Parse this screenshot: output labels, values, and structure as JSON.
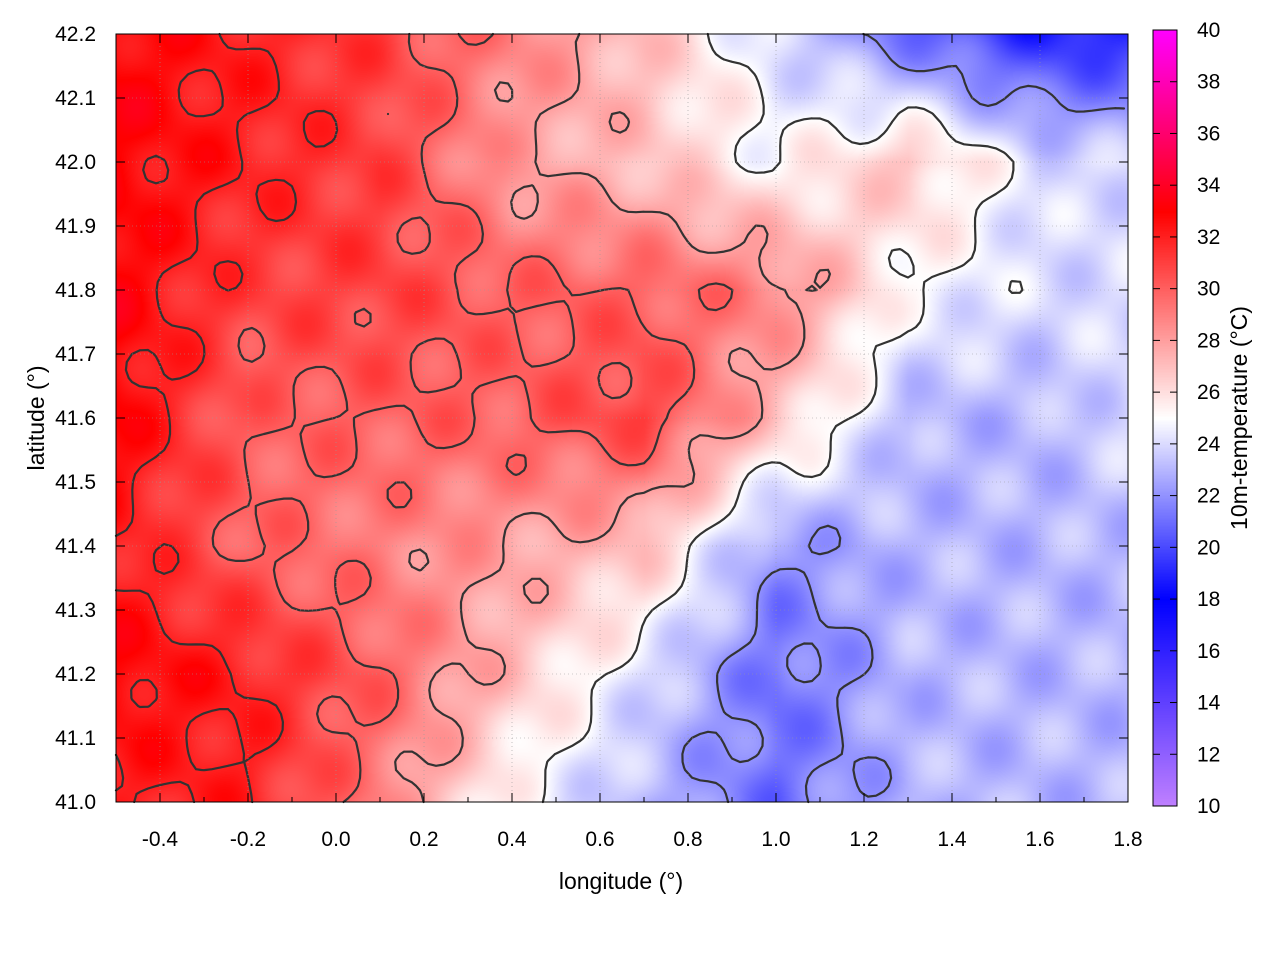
{
  "chart_data": {
    "type": "heatmap",
    "title": "",
    "xlabel": "longitude (°)",
    "ylabel": "latitude (°)",
    "colorbar_label": "10m-temperature (°C)",
    "xlim": [
      -0.5,
      1.8
    ],
    "ylim": [
      41.0,
      42.2
    ],
    "xticks": [
      -0.4,
      -0.2,
      0.0,
      0.2,
      0.4,
      0.6,
      0.8,
      1.0,
      1.2,
      1.4,
      1.6,
      1.8
    ],
    "xtick_labels": [
      "-0.4",
      "-0.2",
      "0.0",
      "0.2",
      "0.4",
      "0.6",
      "0.8",
      "1.0",
      "1.2",
      "1.4",
      "1.6",
      "1.8"
    ],
    "yticks": [
      41.0,
      41.1,
      41.2,
      41.3,
      41.4,
      41.5,
      41.6,
      41.7,
      41.8,
      41.9,
      42.0,
      42.1,
      42.2
    ],
    "ytick_labels": [
      "41.0",
      "41.1",
      "41.2",
      "41.3",
      "41.4",
      "41.5",
      "41.6",
      "41.7",
      "41.8",
      "41.9",
      "42.0",
      "42.1",
      "42.2"
    ],
    "colorbar_range": [
      10,
      40
    ],
    "colorbar_ticks": [
      10,
      12,
      14,
      16,
      18,
      20,
      22,
      24,
      26,
      28,
      30,
      32,
      34,
      36,
      38,
      40
    ],
    "colorbar_tick_labels": [
      "10",
      "12",
      "14",
      "16",
      "18",
      "20",
      "22",
      "24",
      "26",
      "28",
      "30",
      "32",
      "34",
      "36",
      "38",
      "40"
    ],
    "colormap": [
      [
        10,
        "#c080ff"
      ],
      [
        18,
        "#0000ff"
      ],
      [
        25,
        "#ffffff"
      ],
      [
        33,
        "#ff0000"
      ],
      [
        40,
        "#ff00ff"
      ]
    ],
    "grid": true,
    "temperature_field": {
      "x": [
        -0.5,
        -0.2,
        0.1,
        0.4,
        0.7,
        1.0,
        1.3,
        1.6,
        1.8
      ],
      "y": [
        41.0,
        41.2,
        41.4,
        41.6,
        41.8,
        42.0,
        42.2
      ],
      "values": [
        [
          32,
          32,
          29,
          25,
          23,
          21,
          23,
          23,
          23
        ],
        [
          33,
          32,
          30,
          27,
          24,
          21,
          23,
          23,
          23
        ],
        [
          32,
          30,
          29,
          28,
          27,
          22,
          23,
          23,
          23
        ],
        [
          33,
          30,
          30,
          30,
          31,
          27,
          23,
          23,
          24
        ],
        [
          33,
          31,
          31,
          30,
          30,
          29,
          25,
          24,
          24
        ],
        [
          33,
          32,
          31,
          28,
          27,
          25,
          27,
          24,
          24
        ],
        [
          33,
          32,
          31,
          29,
          27,
          24,
          21,
          19,
          19
        ]
      ]
    },
    "contour_levels": [
      22,
      25,
      28,
      30,
      32
    ]
  }
}
